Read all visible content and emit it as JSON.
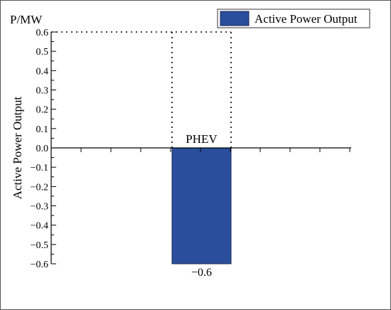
{
  "chart_data": {
    "type": "bar",
    "unit_label": "P/MW",
    "ylabel": "Active Power Output",
    "xlabel": "",
    "categories": [
      "PHEV"
    ],
    "series": [
      {
        "name": "Active Power Output",
        "values": [
          -0.6
        ],
        "color": "#2a4e9b"
      }
    ],
    "data_labels": [
      "−0.6"
    ],
    "ylim": [
      -0.6,
      0.6
    ],
    "yticks": [
      0.6,
      0.5,
      0.4,
      0.3,
      0.2,
      0.1,
      0.0,
      -0.1,
      -0.2,
      -0.3,
      -0.4,
      -0.5,
      -0.6
    ],
    "ytick_labels": [
      "0.6",
      "0.5",
      "0.4",
      "0.3",
      "0.2",
      "0.1",
      "0.0",
      "−0.1",
      "−0.2",
      "−0.3",
      "−0.4",
      "−0.5",
      "−0.6"
    ],
    "legend_position": "top-right",
    "grid": false,
    "reference_line_value": 0.6
  }
}
